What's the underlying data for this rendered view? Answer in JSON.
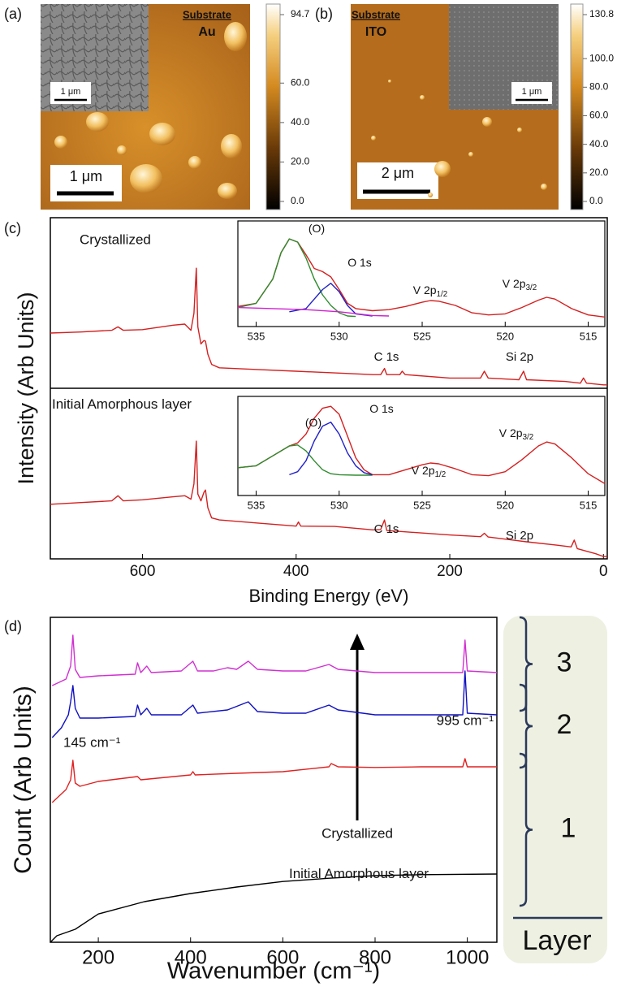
{
  "afm": [
    {
      "label": "(a)",
      "substrate_label": "Substrate",
      "substrate": "Au",
      "scale_bar": "1 μm",
      "inset_scale_bar": "1 μm",
      "colorbar": {
        "lim": [
          0,
          94.7
        ],
        "ticks": [
          94.7,
          {
            "value": 60,
            "label": "60.0"
          },
          {
            "value": 40,
            "label": "40.0"
          },
          {
            "value": 20,
            "label": "20.0"
          },
          {
            "value": 0,
            "label": "0.0"
          }
        ]
      }
    },
    {
      "label": "(b)",
      "substrate_label": "Substrate",
      "substrate": "ITO",
      "scale_bar": "2 μm",
      "inset_scale_bar": "1 μm",
      "colorbar": {
        "lim": [
          0,
          130.8
        ],
        "ticks": [
          130.8,
          {
            "value": 100,
            "label": "100.0"
          },
          {
            "value": 80,
            "label": "80.0"
          },
          {
            "value": 60,
            "label": "60.0"
          },
          {
            "value": 40,
            "label": "40.0"
          },
          {
            "value": 20,
            "label": "20.0"
          },
          {
            "value": 0,
            "label": "0.0"
          }
        ]
      }
    }
  ],
  "chart_data": [
    {
      "type": "line",
      "panel_label": "(c)",
      "x_label": "Binding Energy (eV)",
      "y_label": "Intensity (Arb Units)",
      "xlim": [
        720,
        -5
      ],
      "ylim": [
        0,
        100
      ],
      "xticks": [
        0,
        200,
        400,
        600
      ],
      "series": [
        {
          "name": "Crystallized",
          "color": "#d42020",
          "x": [
            720,
            680,
            640,
            632,
            625,
            600,
            560,
            545,
            537,
            533,
            530,
            528,
            524,
            520,
            518,
            515,
            510,
            500,
            450,
            400,
            350,
            300,
            290,
            285,
            282,
            265,
            262,
            258,
            200,
            160,
            155,
            150,
            110,
            104,
            100,
            50,
            30,
            26,
            22,
            0,
            -5
          ],
          "values": [
            66.2,
            66.5,
            67,
            68,
            67,
            67.2,
            68.5,
            68.8,
            67,
            72,
            85.2,
            68,
            63,
            64,
            63.8,
            60,
            57,
            56,
            55.5,
            55,
            54.5,
            54,
            54,
            55.8,
            54,
            54,
            55,
            54,
            53,
            53,
            55,
            53,
            52.5,
            55,
            52.5,
            52,
            51.5,
            53,
            51.5,
            51,
            51
          ]
        },
        {
          "name": "Initial Amorphous layer",
          "color": "#d42020",
          "x": [
            720,
            680,
            640,
            632,
            625,
            600,
            560,
            545,
            537,
            533,
            530,
            528,
            524,
            520,
            518,
            515,
            510,
            500,
            450,
            400,
            397,
            394,
            350,
            300,
            290,
            285,
            282,
            200,
            160,
            155,
            150,
            100,
            60,
            42,
            38,
            34,
            10,
            0,
            -5
          ],
          "values": [
            16,
            16.5,
            17,
            18.5,
            17,
            17.3,
            18.2,
            18.5,
            17.5,
            22,
            34.5,
            19,
            17,
            19.5,
            20.2,
            15,
            12,
            11.4,
            10.5,
            9.6,
            10.8,
            9.6,
            9.5,
            8.5,
            8.6,
            11.4,
            8.3,
            7,
            6.5,
            7.5,
            6.4,
            5,
            4,
            3.5,
            5.5,
            3,
            1.5,
            0.7,
            0.7
          ]
        }
      ],
      "annotations": [
        "C 1s",
        "Si 2p",
        "C 1s",
        "Si 2p"
      ]
    },
    {
      "type": "line",
      "xlim": [
        536.1,
        514
      ],
      "ylim": [
        0,
        100
      ],
      "xticks": [
        535,
        530,
        525,
        520,
        515
      ],
      "series": [
        {
          "color": "#d42020",
          "x": [
            536.1,
            535,
            534,
            533.5,
            533,
            532.5,
            532,
            531.5,
            531,
            530.5,
            530,
            529.5,
            529,
            528,
            527,
            526,
            525,
            524.5,
            524,
            523,
            522,
            521,
            520,
            519,
            518,
            517.5,
            517,
            516,
            515,
            514
          ],
          "values": [
            19,
            22,
            45,
            70,
            83,
            80,
            68,
            55,
            52,
            47,
            35,
            22,
            17,
            15,
            16,
            19,
            23,
            24.6,
            24,
            20,
            13,
            11,
            12,
            18,
            25,
            27.7,
            26,
            17,
            11,
            9
          ]
        },
        {
          "color": "#2e8b2e",
          "x": [
            536.1,
            535,
            534,
            533.5,
            533,
            532.5,
            532,
            531.5,
            531,
            530.5,
            530,
            529.5,
            529
          ],
          "values": [
            18,
            22,
            45,
            70,
            83,
            80,
            65,
            45,
            30,
            20,
            13,
            10,
            9.5
          ]
        },
        {
          "color": "#2020c8",
          "x": [
            533,
            532,
            531.5,
            531,
            530.5,
            530,
            529.5,
            529,
            528
          ],
          "values": [
            14,
            17,
            26,
            35,
            41,
            33,
            20,
            12,
            10
          ]
        },
        {
          "color": "#d020d0",
          "x": [
            536.1,
            534,
            532,
            530,
            528,
            527
          ],
          "values": [
            18,
            17,
            16,
            14,
            10.5,
            10
          ]
        }
      ],
      "annotations": [
        {
          "text": "(O)"
        },
        {
          "text": "O 1s"
        },
        {
          "text": "V 2p",
          "sub": "1/2"
        },
        {
          "text": "V 2p",
          "sub": "3/2"
        }
      ]
    },
    {
      "type": "line",
      "xlim": [
        536.1,
        514
      ],
      "ylim": [
        0,
        100
      ],
      "xticks": [
        535,
        530,
        525,
        520,
        515
      ],
      "series": [
        {
          "color": "#d42020",
          "x": [
            536.1,
            535,
            534,
            533,
            532.5,
            532,
            531.5,
            531,
            530.5,
            530,
            529.5,
            529,
            528.5,
            528,
            527,
            526,
            525,
            524.5,
            524,
            523,
            522,
            521,
            520,
            519,
            518,
            517.5,
            517,
            516,
            515,
            514
          ],
          "values": [
            28,
            30,
            40,
            50,
            53,
            62,
            78,
            88,
            90,
            82,
            60,
            38,
            26,
            21,
            21,
            26,
            31,
            32.8,
            32,
            27,
            21,
            20,
            24,
            36,
            50,
            54,
            52,
            38,
            22,
            12
          ]
        },
        {
          "color": "#2e8b2e",
          "x": [
            536.1,
            535,
            534,
            533,
            532.5,
            532,
            531.5,
            531,
            530.5,
            530,
            529,
            528
          ],
          "values": [
            28,
            30,
            40,
            50,
            51,
            45,
            35,
            26,
            22,
            21,
            20.5,
            20.5
          ]
        },
        {
          "color": "#2020c8",
          "x": [
            533,
            532.5,
            532,
            531.5,
            531,
            530.5,
            530,
            529.5,
            529,
            528.5,
            528
          ],
          "values": [
            21,
            24,
            35,
            55,
            70,
            74,
            62,
            43,
            30,
            23,
            21
          ]
        }
      ],
      "annotations": [
        {
          "text": "(O)"
        },
        {
          "text": "O 1s"
        },
        {
          "text": "V 2p",
          "sub": "1/2"
        },
        {
          "text": "V 2p",
          "sub": "3/2"
        }
      ]
    },
    {
      "type": "line",
      "panel_label": "(d)",
      "x_label": "Wavenumber (cm⁻¹)",
      "y_label": "Count (Arb Units)",
      "xlim": [
        96,
        1064
      ],
      "ylim": [
        0,
        100
      ],
      "xticks": [
        200,
        400,
        600,
        800,
        1000
      ],
      "legend_title": "Layer",
      "series": [
        {
          "name": "Initial Amorphous layer",
          "color": "#000000",
          "x": [
            96,
            110,
            150,
            200,
            300,
            400,
            500,
            600,
            700,
            800,
            900,
            1064
          ],
          "values": [
            0,
            2,
            4,
            8.7,
            12.5,
            15,
            17,
            18.7,
            19.7,
            20.5,
            20.8,
            21
          ]
        },
        {
          "name": "1",
          "color": "#e02020",
          "x": [
            100,
            130,
            140,
            145,
            150,
            160,
            200,
            285,
            292,
            400,
            405,
            410,
            500,
            600,
            700,
            705,
            720,
            800,
            900,
            990,
            995,
            1000,
            1064
          ],
          "values": [
            43,
            47,
            50,
            56,
            49,
            48,
            49.5,
            51,
            50,
            51.5,
            52.5,
            51.5,
            52,
            52.5,
            54,
            55,
            54,
            53.8,
            54,
            54,
            56.5,
            54,
            54
          ]
        },
        {
          "name": "2",
          "color": "#1010c0",
          "x": [
            100,
            120,
            135,
            140,
            145,
            150,
            160,
            200,
            280,
            285,
            292,
            305,
            315,
            380,
            405,
            415,
            480,
            525,
            545,
            600,
            650,
            700,
            720,
            800,
            900,
            990,
            995,
            1000,
            1064
          ],
          "values": [
            63,
            66,
            70,
            74,
            79,
            72,
            69,
            69,
            69.5,
            73,
            70,
            72,
            70,
            70,
            73,
            70.5,
            71.5,
            74,
            71,
            70.5,
            70.5,
            73,
            71.5,
            70,
            70,
            70,
            83.5,
            70.5,
            70
          ]
        },
        {
          "name": "3",
          "color": "#d030d0",
          "x": [
            100,
            130,
            140,
            145,
            150,
            160,
            200,
            280,
            285,
            292,
            305,
            315,
            380,
            405,
            415,
            450,
            480,
            500,
            525,
            545,
            600,
            650,
            700,
            720,
            800,
            900,
            990,
            995,
            1000,
            1064
          ],
          "values": [
            79,
            81,
            85,
            94.5,
            84,
            81.5,
            82,
            82.5,
            86,
            83,
            85,
            83,
            83.5,
            86.5,
            83.5,
            83.5,
            84.5,
            84,
            86.5,
            84,
            83.5,
            83.5,
            85.5,
            84,
            83,
            83,
            83,
            93,
            83.5,
            83
          ]
        }
      ],
      "annotations": [
        "145 cm⁻¹",
        "995 cm⁻¹",
        "Crystallized"
      ]
    }
  ]
}
